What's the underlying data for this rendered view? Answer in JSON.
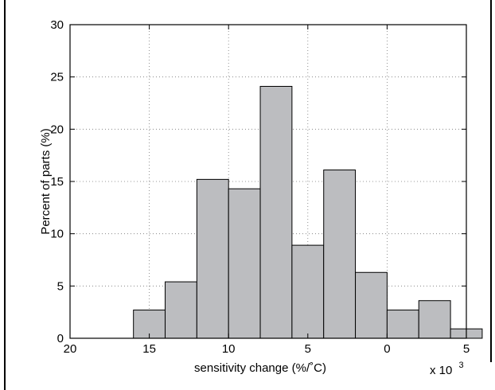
{
  "chart_data": {
    "type": "bar",
    "subtype": "histogram",
    "title": "",
    "xlabel": "sensitivity change (%/˚C)",
    "ylabel": "Percent of parts (%)",
    "x_multiplier_label": "x 10",
    "x_multiplier_exponent": "3",
    "xlim": [
      -20,
      5
    ],
    "ylim": [
      0,
      30
    ],
    "x_tick_values": [
      -20,
      -15,
      -10,
      -5,
      0,
      5
    ],
    "x_tick_labels": [
      "20",
      "15",
      "10",
      "5",
      "0",
      "5"
    ],
    "y_ticks": [
      0,
      5,
      10,
      15,
      20,
      25,
      30
    ],
    "grid": true,
    "bar_color": "#bcbdc0",
    "bins": [
      {
        "from": -16,
        "to": -14,
        "value": 2.7
      },
      {
        "from": -14,
        "to": -12,
        "value": 5.4
      },
      {
        "from": -12,
        "to": -10,
        "value": 15.2
      },
      {
        "from": -10,
        "to": -8,
        "value": 14.3
      },
      {
        "from": -8,
        "to": -6,
        "value": 24.1
      },
      {
        "from": -6,
        "to": -4,
        "value": 8.9
      },
      {
        "from": -4,
        "to": -2,
        "value": 16.1
      },
      {
        "from": -2,
        "to": 0,
        "value": 6.3
      },
      {
        "from": 0,
        "to": 2,
        "value": 2.7
      },
      {
        "from": 2,
        "to": 4,
        "value": 3.6
      },
      {
        "from": 4,
        "to": 6,
        "value": 0.9
      }
    ]
  }
}
